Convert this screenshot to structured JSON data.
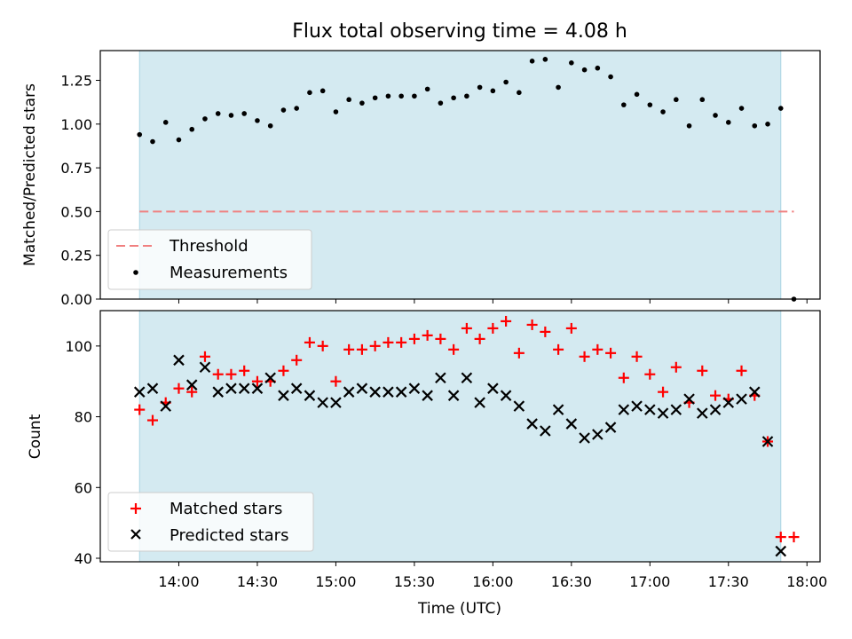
{
  "chart_data": [
    {
      "type": "scatter",
      "title": "Flux total observing time = 4.08 h",
      "ylabel": "Matched/Predicted stars",
      "xlabel": "",
      "xlim": [
        "13:30",
        "18:05"
      ],
      "ylim": [
        0,
        1.42
      ],
      "yticks": [
        "0.00",
        "0.25",
        "0.50",
        "0.75",
        "1.00",
        "1.25"
      ],
      "ytick_values": [
        0,
        0.25,
        0.5,
        0.75,
        1.0,
        1.25
      ],
      "shaded_region": {
        "start": "13:45",
        "end": "17:50",
        "color": "#add8e6"
      },
      "threshold": {
        "name": "Threshold",
        "value": 0.5,
        "x_start": "13:45",
        "x_end": "17:55",
        "color": "#f08080"
      },
      "series": [
        {
          "name": "Measurements",
          "marker": "dot",
          "color": "#000000",
          "x": [
            "13:45",
            "13:50",
            "13:55",
            "14:00",
            "14:05",
            "14:10",
            "14:15",
            "14:20",
            "14:25",
            "14:30",
            "14:35",
            "14:40",
            "14:45",
            "14:50",
            "14:55",
            "15:00",
            "15:05",
            "15:10",
            "15:15",
            "15:20",
            "15:25",
            "15:30",
            "15:35",
            "15:40",
            "15:45",
            "15:50",
            "15:55",
            "16:00",
            "16:05",
            "16:10",
            "16:15",
            "16:20",
            "16:25",
            "16:30",
            "16:35",
            "16:40",
            "16:45",
            "16:50",
            "16:55",
            "17:00",
            "17:05",
            "17:10",
            "17:15",
            "17:20",
            "17:25",
            "17:30",
            "17:35",
            "17:40",
            "17:45",
            "17:50",
            "17:55"
          ],
          "y": [
            0.94,
            0.9,
            1.01,
            0.91,
            0.97,
            1.03,
            1.06,
            1.05,
            1.06,
            1.02,
            0.99,
            1.08,
            1.09,
            1.18,
            1.19,
            1.07,
            1.14,
            1.12,
            1.15,
            1.16,
            1.16,
            1.16,
            1.2,
            1.12,
            1.15,
            1.16,
            1.21,
            1.19,
            1.24,
            1.18,
            1.36,
            1.37,
            1.21,
            1.35,
            1.31,
            1.32,
            1.27,
            1.11,
            1.17,
            1.11,
            1.07,
            1.14,
            0.99,
            1.14,
            1.05,
            1.01,
            1.09,
            0.99,
            1.0,
            1.09,
            0.0
          ]
        }
      ],
      "legend": {
        "placement": "lower-left",
        "entries": [
          "Threshold",
          "Measurements"
        ]
      }
    },
    {
      "type": "scatter",
      "title": "",
      "xlabel": "Time (UTC)",
      "ylabel": "Count",
      "xlim": [
        "13:30",
        "18:05"
      ],
      "ylim": [
        39,
        110
      ],
      "xticks": [
        "14:00",
        "14:30",
        "15:00",
        "15:30",
        "16:00",
        "16:30",
        "17:00",
        "17:30",
        "18:00"
      ],
      "yticks": [
        "40",
        "60",
        "80",
        "100"
      ],
      "ytick_values": [
        40,
        60,
        80,
        100
      ],
      "shaded_region": {
        "start": "13:45",
        "end": "17:50",
        "color": "#add8e6"
      },
      "series": [
        {
          "name": "Matched stars",
          "marker": "plus",
          "color": "#ff0000",
          "x": [
            "13:45",
            "13:50",
            "13:55",
            "14:00",
            "14:05",
            "14:10",
            "14:15",
            "14:20",
            "14:25",
            "14:30",
            "14:35",
            "14:40",
            "14:45",
            "14:50",
            "14:55",
            "15:00",
            "15:05",
            "15:10",
            "15:15",
            "15:20",
            "15:25",
            "15:30",
            "15:35",
            "15:40",
            "15:45",
            "15:50",
            "15:55",
            "16:00",
            "16:05",
            "16:10",
            "16:15",
            "16:20",
            "16:25",
            "16:30",
            "16:35",
            "16:40",
            "16:45",
            "16:50",
            "16:55",
            "17:00",
            "17:05",
            "17:10",
            "17:15",
            "17:20",
            "17:25",
            "17:30",
            "17:35",
            "17:40",
            "17:45",
            "17:50",
            "17:55"
          ],
          "y": [
            82,
            79,
            84,
            88,
            87,
            97,
            92,
            92,
            93,
            90,
            90,
            93,
            96,
            101,
            100,
            90,
            99,
            99,
            100,
            101,
            101,
            102,
            103,
            102,
            99,
            105,
            102,
            105,
            107,
            98,
            106,
            104,
            99,
            105,
            97,
            99,
            98,
            91,
            97,
            92,
            87,
            94,
            84,
            93,
            86,
            85,
            93,
            86,
            73,
            46,
            46
          ]
        },
        {
          "name": "Predicted stars",
          "marker": "x",
          "color": "#000000",
          "x": [
            "13:45",
            "13:50",
            "13:55",
            "14:00",
            "14:05",
            "14:10",
            "14:15",
            "14:20",
            "14:25",
            "14:30",
            "14:35",
            "14:40",
            "14:45",
            "14:50",
            "14:55",
            "15:00",
            "15:05",
            "15:10",
            "15:15",
            "15:20",
            "15:25",
            "15:30",
            "15:35",
            "15:40",
            "15:45",
            "15:50",
            "15:55",
            "16:00",
            "16:05",
            "16:10",
            "16:15",
            "16:20",
            "16:25",
            "16:30",
            "16:35",
            "16:40",
            "16:45",
            "16:50",
            "16:55",
            "17:00",
            "17:05",
            "17:10",
            "17:15",
            "17:20",
            "17:25",
            "17:30",
            "17:35",
            "17:40",
            "17:45",
            "17:50"
          ],
          "y": [
            87,
            88,
            83,
            96,
            89,
            94,
            87,
            88,
            88,
            88,
            91,
            86,
            88,
            86,
            84,
            84,
            87,
            88,
            87,
            87,
            87,
            88,
            86,
            91,
            86,
            91,
            84,
            88,
            86,
            83,
            78,
            76,
            82,
            78,
            74,
            75,
            77,
            82,
            83,
            82,
            81,
            82,
            85,
            81,
            82,
            84,
            85,
            87,
            73,
            42
          ]
        }
      ],
      "legend": {
        "placement": "lower-left",
        "entries": [
          "Matched stars",
          "Predicted stars"
        ]
      }
    }
  ]
}
